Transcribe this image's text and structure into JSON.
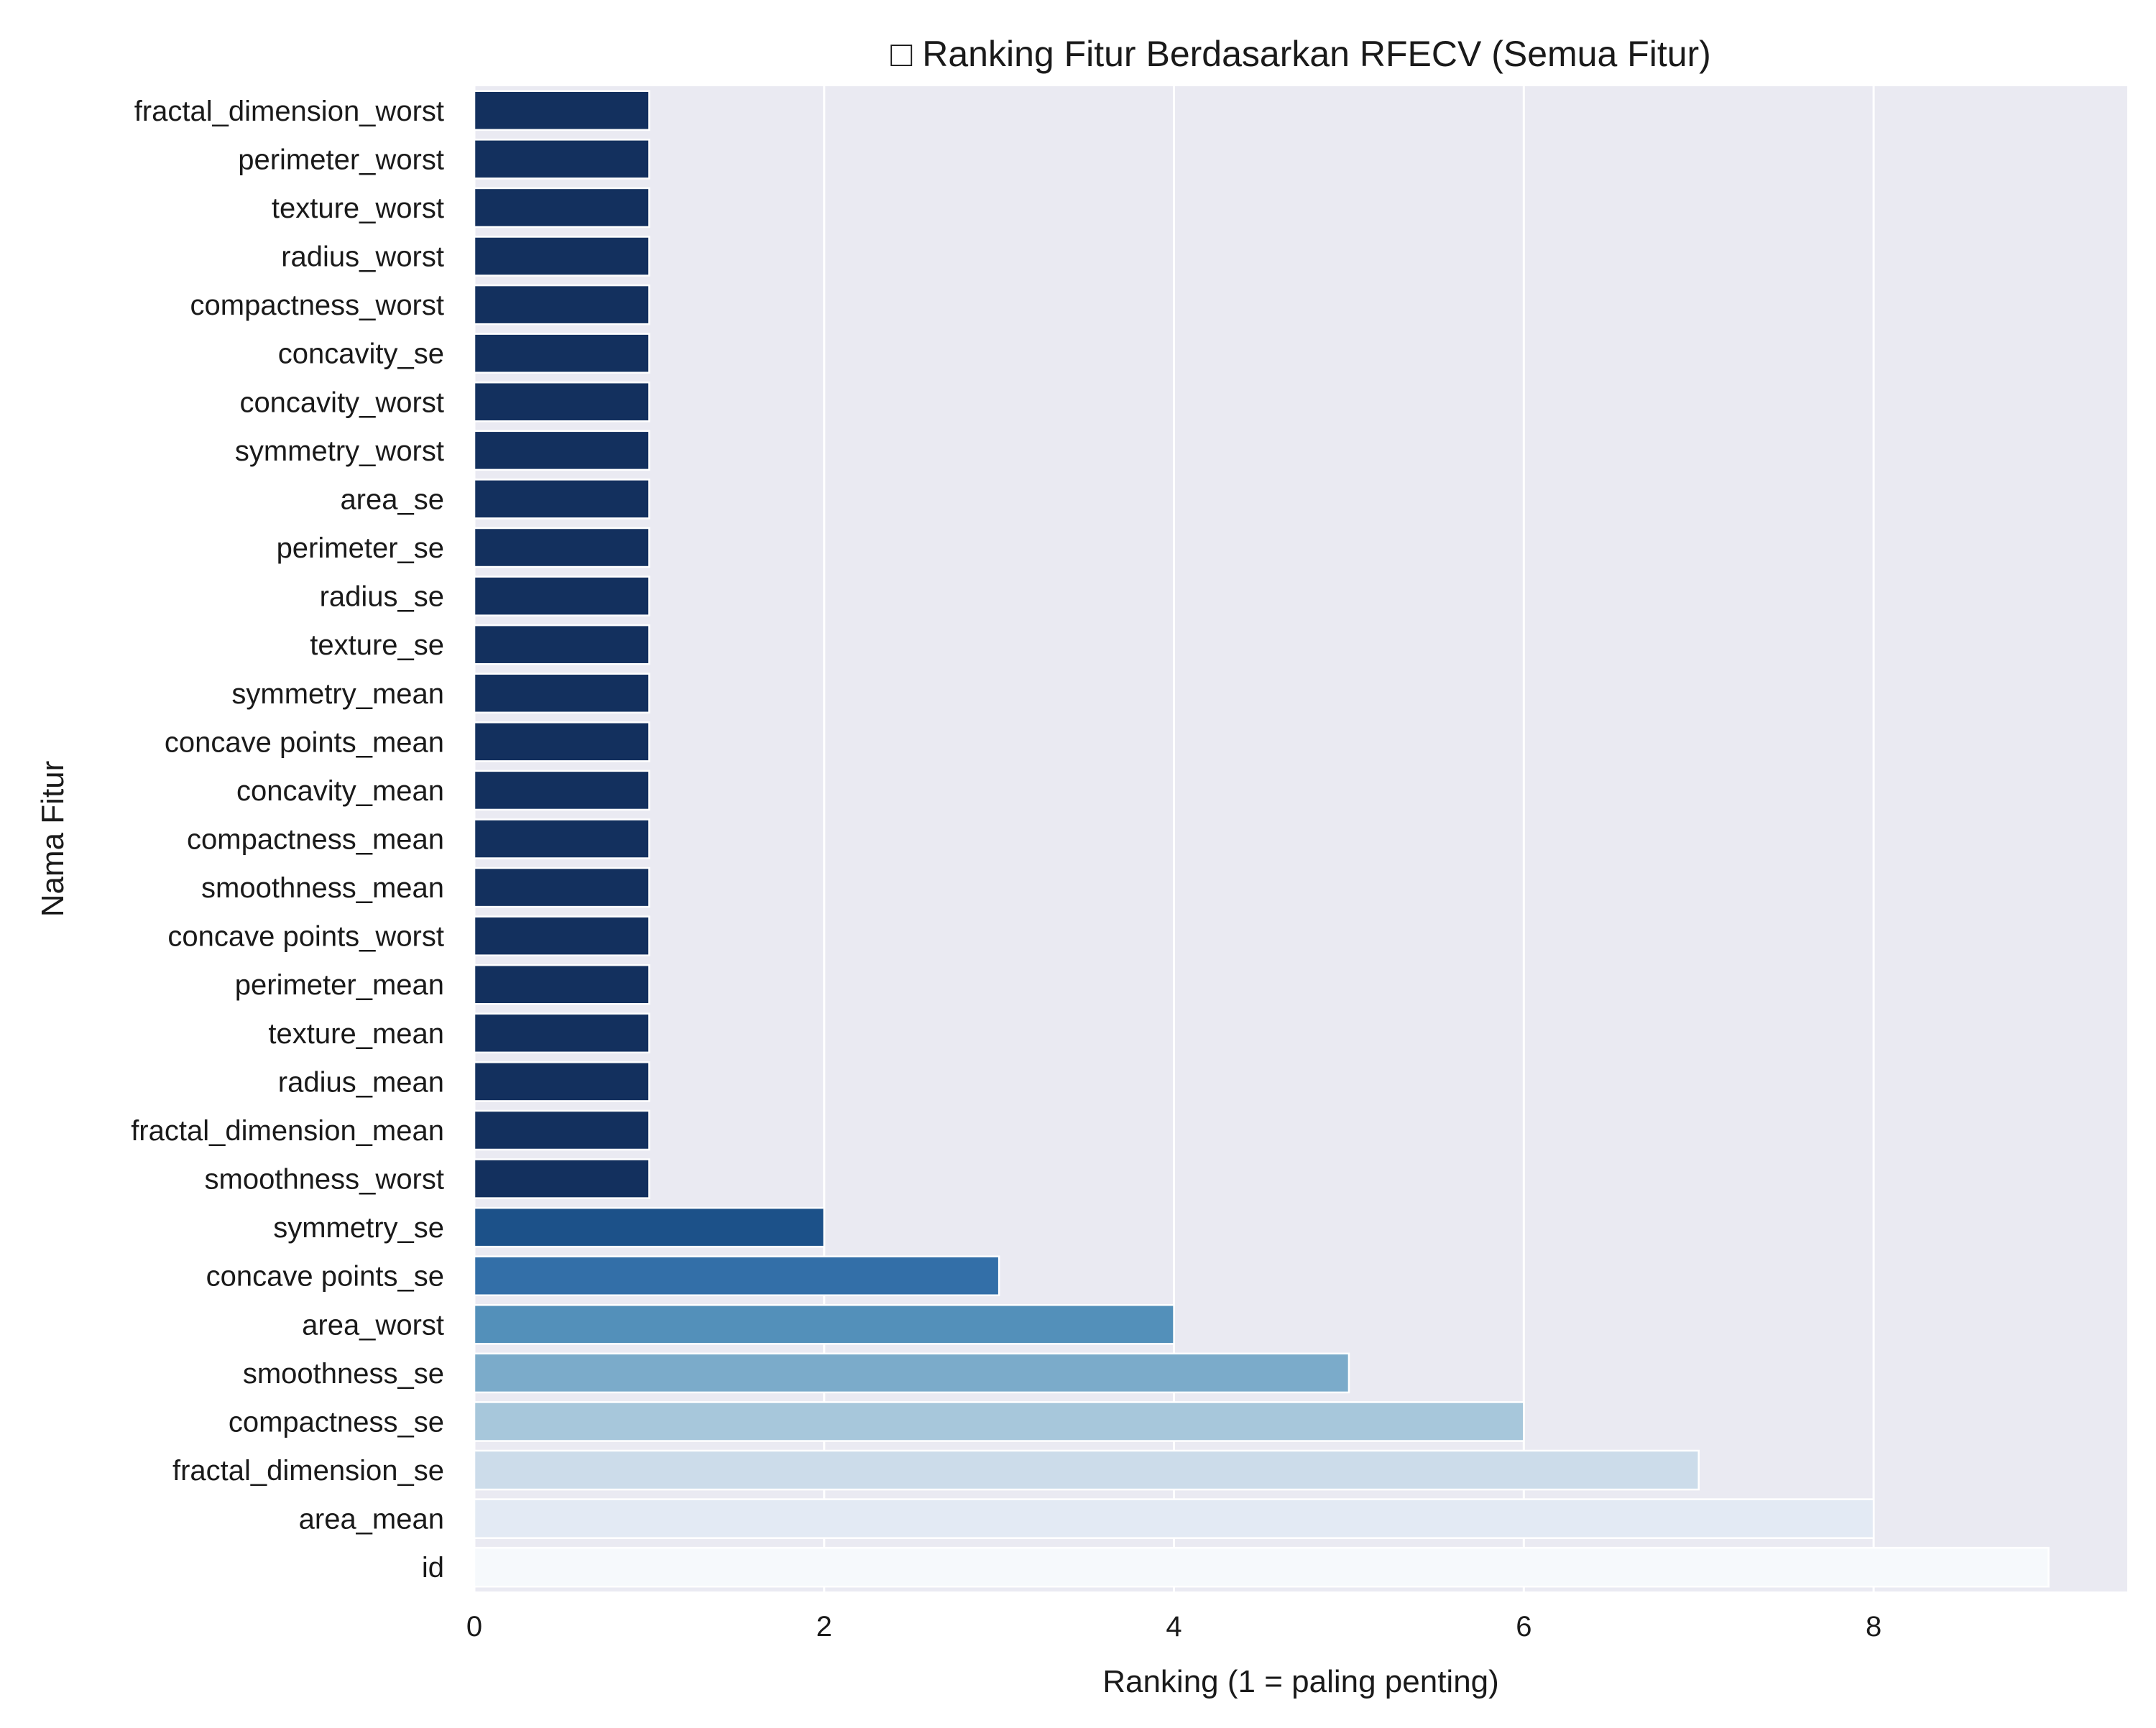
{
  "chart_data": {
    "type": "bar",
    "orientation": "horizontal",
    "title": "□ Ranking Fitur Berdasarkan RFECV (Semua Fitur)",
    "xlabel": "Ranking (1 = paling penting)",
    "ylabel": "Nama Fitur",
    "xlim": [
      0,
      9.45
    ],
    "xticks": [
      0,
      2,
      4,
      6,
      8
    ],
    "grid": true,
    "legend": "none",
    "background_color": "#eaeaf2",
    "categories": [
      "fractal_dimension_worst",
      "perimeter_worst",
      "texture_worst",
      "radius_worst",
      "compactness_worst",
      "concavity_se",
      "concavity_worst",
      "symmetry_worst",
      "area_se",
      "perimeter_se",
      "radius_se",
      "texture_se",
      "symmetry_mean",
      "concave points_mean",
      "concavity_mean",
      "compactness_mean",
      "smoothness_mean",
      "concave points_worst",
      "perimeter_mean",
      "texture_mean",
      "radius_mean",
      "fractal_dimension_mean",
      "smoothness_worst",
      "symmetry_se",
      "concave points_se",
      "area_worst",
      "smoothness_se",
      "compactness_se",
      "fractal_dimension_se",
      "area_mean",
      "id"
    ],
    "values": [
      1,
      1,
      1,
      1,
      1,
      1,
      1,
      1,
      1,
      1,
      1,
      1,
      1,
      1,
      1,
      1,
      1,
      1,
      1,
      1,
      1,
      1,
      1,
      2,
      3,
      4,
      5,
      6,
      7,
      8,
      9
    ],
    "rank_colors": {
      "1": "#13305e",
      "2": "#1c5189",
      "3": "#336fa8",
      "4": "#5390ba",
      "5": "#7babca",
      "6": "#a7c7db",
      "7": "#ccdcea",
      "8": "#e3eaf4",
      "9": "#f6f9fc"
    }
  }
}
